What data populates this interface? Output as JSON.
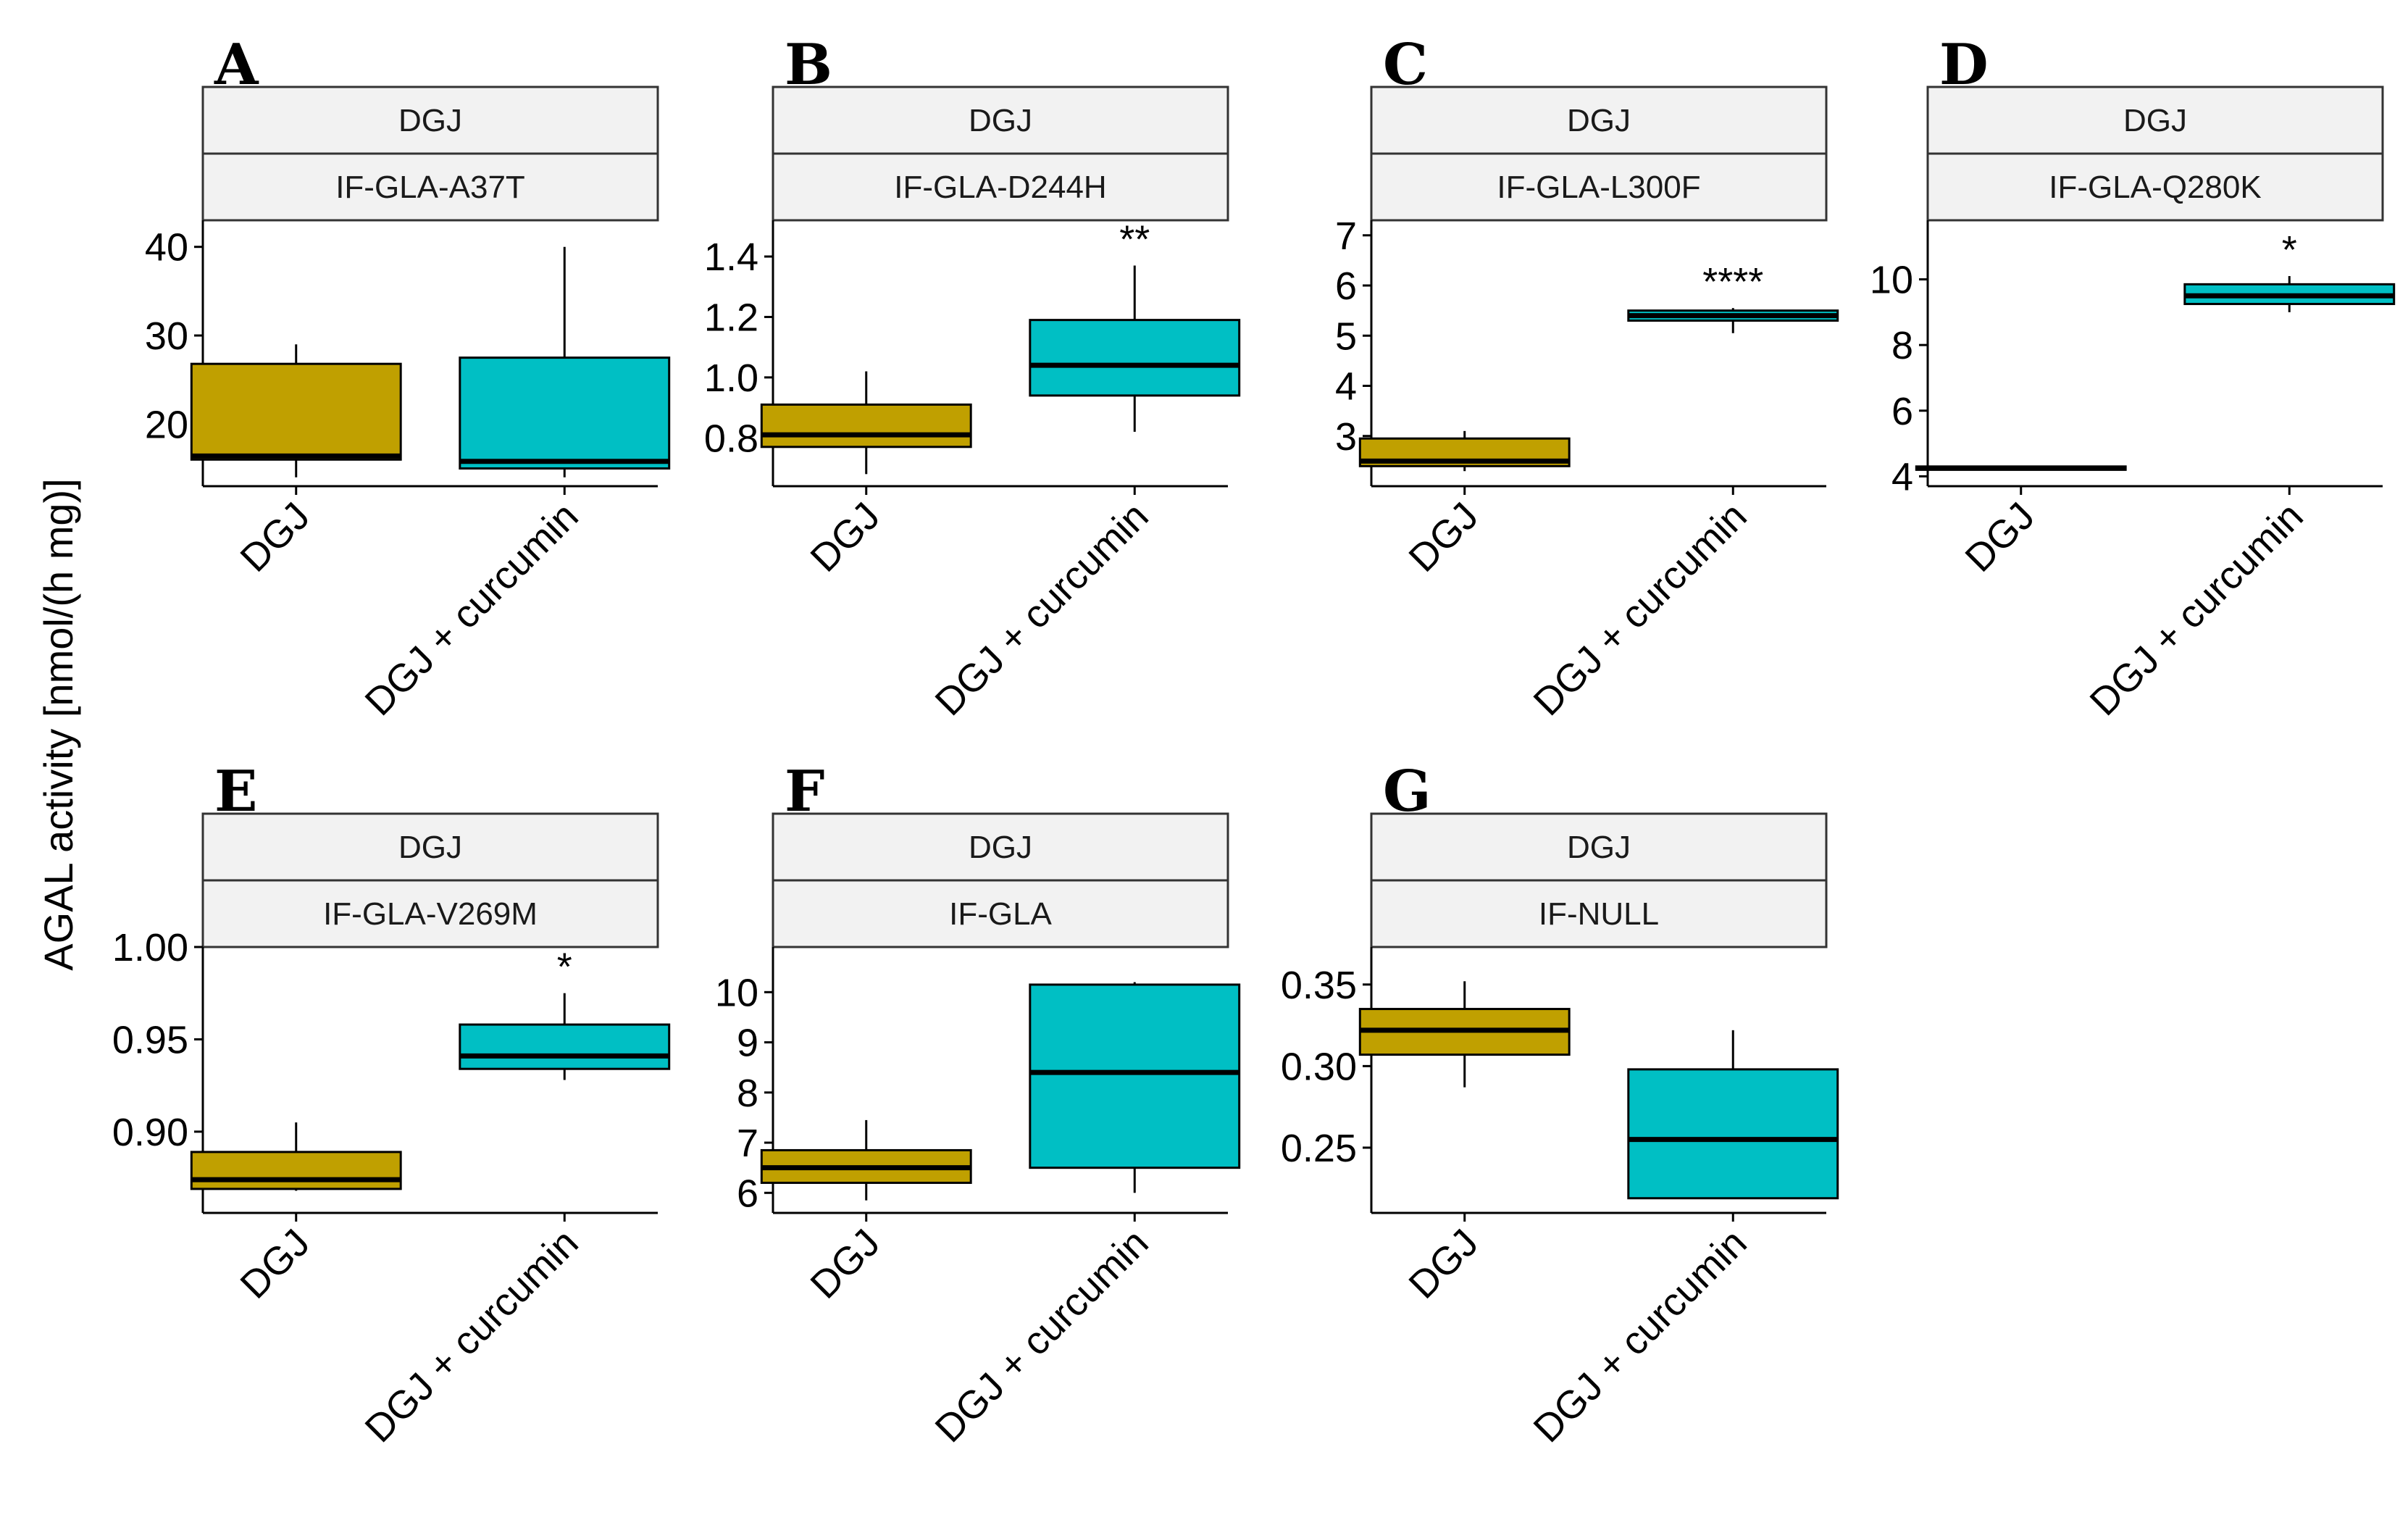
{
  "figure": {
    "ylabel": "AGAL activity [nmol/(h mg)]"
  },
  "colors": {
    "dgj": "#C0A000",
    "dgj_curcumin": "#00BFC4",
    "strip_fill": "#F2F2F2",
    "line": "#000000"
  },
  "chart_data": [
    {
      "type": "box",
      "panel": "A",
      "strip_top": "DGJ",
      "strip_bottom": "IF-GLA-A37T",
      "categories": [
        "DGJ",
        "DGJ + curcumin"
      ],
      "ylim": [
        13,
        43
      ],
      "yticks": [
        20,
        30,
        40
      ],
      "ytick_labels": [
        "20",
        "30",
        "40"
      ],
      "boxes": [
        {
          "min": 14,
          "q1": 16,
          "median": 16.4,
          "q3": 26.8,
          "max": 29
        },
        {
          "min": 14,
          "q1": 15,
          "median": 15.8,
          "q3": 27.5,
          "max": 40
        }
      ],
      "significance": ""
    },
    {
      "type": "box",
      "panel": "B",
      "strip_top": "DGJ",
      "strip_bottom": "IF-GLA-D244H",
      "categories": [
        "DGJ",
        "DGJ + curcumin"
      ],
      "ylim": [
        0.64,
        1.52
      ],
      "yticks": [
        0.8,
        1.0,
        1.2,
        1.4
      ],
      "ytick_labels": [
        "0.8",
        "1.0",
        "1.2",
        "1.4"
      ],
      "boxes": [
        {
          "min": 0.68,
          "q1": 0.77,
          "median": 0.81,
          "q3": 0.91,
          "max": 1.02
        },
        {
          "min": 0.82,
          "q1": 0.94,
          "median": 1.04,
          "q3": 1.19,
          "max": 1.37
        }
      ],
      "significance": "**"
    },
    {
      "type": "box",
      "panel": "C",
      "strip_top": "DGJ",
      "strip_bottom": "IF-GLA-L300F",
      "categories": [
        "DGJ",
        "DGJ + curcumin"
      ],
      "ylim": [
        2.0,
        7.3
      ],
      "yticks": [
        3,
        4,
        5,
        6,
        7
      ],
      "ytick_labels": [
        "3",
        "4",
        "5",
        "6",
        "7"
      ],
      "boxes": [
        {
          "min": 2.3,
          "q1": 2.4,
          "median": 2.5,
          "q3": 2.95,
          "max": 3.1
        },
        {
          "min": 5.05,
          "q1": 5.3,
          "median": 5.4,
          "q3": 5.5,
          "max": 5.55
        }
      ],
      "significance": "****"
    },
    {
      "type": "box",
      "panel": "D",
      "strip_top": "DGJ",
      "strip_bottom": "IF-GLA-Q280K",
      "categories": [
        "DGJ",
        "DGJ + curcumin"
      ],
      "ylim": [
        3.7,
        11.8
      ],
      "yticks": [
        4,
        6,
        8,
        10
      ],
      "ytick_labels": [
        "4",
        "6",
        "8",
        "10"
      ],
      "boxes": [
        {
          "min": 4.2,
          "q1": 4.2,
          "median": 4.25,
          "q3": 4.3,
          "max": 4.3
        },
        {
          "min": 9.0,
          "q1": 9.25,
          "median": 9.5,
          "q3": 9.85,
          "max": 10.1
        }
      ],
      "significance": "*"
    },
    {
      "type": "box",
      "panel": "E",
      "strip_top": "DGJ",
      "strip_bottom": "IF-GLA-V269M",
      "categories": [
        "DGJ",
        "DGJ + curcumin"
      ],
      "ylim": [
        0.856,
        1.0
      ],
      "yticks": [
        0.9,
        0.95,
        1.0
      ],
      "ytick_labels": [
        "0.90",
        "0.95",
        "1.00"
      ],
      "boxes": [
        {
          "min": 0.868,
          "q1": 0.869,
          "median": 0.874,
          "q3": 0.889,
          "max": 0.905
        },
        {
          "min": 0.928,
          "q1": 0.934,
          "median": 0.941,
          "q3": 0.958,
          "max": 0.975
        }
      ],
      "significance": "*"
    },
    {
      "type": "box",
      "panel": "F",
      "strip_top": "DGJ",
      "strip_bottom": "IF-GLA",
      "categories": [
        "DGJ",
        "DGJ + curcumin"
      ],
      "ylim": [
        5.6,
        10.9
      ],
      "yticks": [
        6,
        7,
        8,
        9,
        10
      ],
      "ytick_labels": [
        "6",
        "7",
        "8",
        "9",
        "10"
      ],
      "boxes": [
        {
          "min": 5.85,
          "q1": 6.2,
          "median": 6.5,
          "q3": 6.85,
          "max": 7.45
        },
        {
          "min": 6.0,
          "q1": 6.5,
          "median": 8.4,
          "q3": 10.15,
          "max": 10.2
        }
      ],
      "significance": ""
    },
    {
      "type": "box",
      "panel": "G",
      "strip_top": "DGJ",
      "strip_bottom": "IF-NULL",
      "categories": [
        "DGJ",
        "DGJ + curcumin"
      ],
      "ylim": [
        0.21,
        0.373
      ],
      "yticks": [
        0.25,
        0.3,
        0.35
      ],
      "ytick_labels": [
        "0.25",
        "0.30",
        "0.35"
      ],
      "boxes": [
        {
          "min": 0.287,
          "q1": 0.307,
          "median": 0.322,
          "q3": 0.335,
          "max": 0.352
        },
        {
          "min": 0.219,
          "q1": 0.219,
          "median": 0.255,
          "q3": 0.298,
          "max": 0.322
        }
      ],
      "significance": ""
    }
  ]
}
